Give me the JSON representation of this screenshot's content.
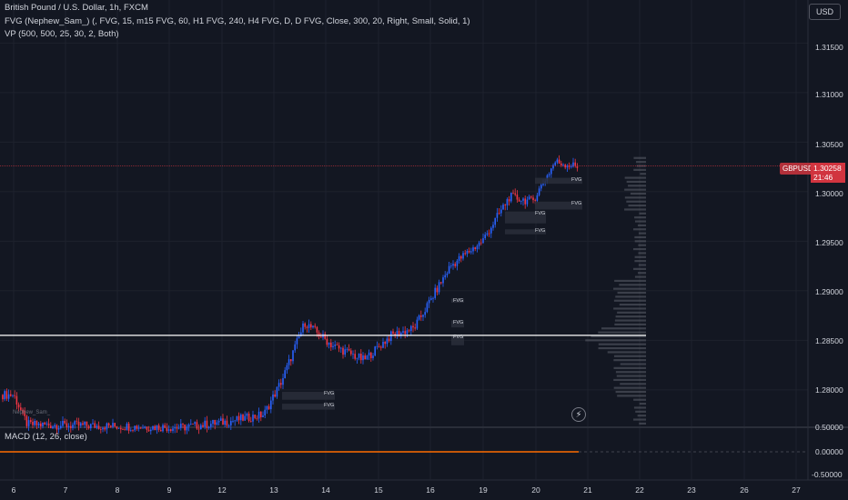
{
  "legend": {
    "symbol_line": "British Pound / U.S. Dollar, 1h, FXCM",
    "fvg_line": "FVG (Nephew_Sam_) (, FVG, 15, m15 FVG, 60, H1 FVG, 240, H4 FVG, D, D FVG, Close, 300, 20, Right, Small, Solid, 1)",
    "vp_line": "VP (500, 500, 25, 30, 2, Both)"
  },
  "currency_button": "USD",
  "price_axis": {
    "ticks": [
      "1.31500",
      "1.31000",
      "1.30500",
      "1.30000",
      "1.29500",
      "1.29000",
      "1.28500",
      "1.28000",
      "0.50000"
    ],
    "current_symbol": "GBPUSD",
    "current_price": "1.30258",
    "countdown": "21:46"
  },
  "macd": {
    "legend": "MACD (12, 26, close)",
    "ticks": [
      "0.00000",
      "-0.50000"
    ]
  },
  "time_axis": [
    "6",
    "7",
    "8",
    "9",
    "12",
    "13",
    "14",
    "15",
    "16",
    "19",
    "20",
    "21",
    "22",
    "23",
    "26",
    "27"
  ],
  "fvg_label_text": "FVG",
  "author_tag": "Nephew_Sam_",
  "alert_icon": "lightning-bolt-icon",
  "colors": {
    "background": "#131722",
    "up": "#2962ff",
    "down": "#f23645",
    "grid": "#1e222d",
    "current_price": "#d1343f",
    "horizontal_line": "#ffffff",
    "fvg_box": "#2a2e39",
    "macd_line": "#ff6d00"
  },
  "chart_data": {
    "type": "candlestick",
    "symbol": "GBPUSD",
    "timeframe": "1h",
    "ylim": [
      1.2765,
      1.3195
    ],
    "x_dates": [
      "6",
      "7",
      "8",
      "9",
      "12",
      "13",
      "14",
      "15",
      "16",
      "19",
      "20",
      "21",
      "22",
      "23",
      "26",
      "27"
    ],
    "horizontal_level": 1.2855,
    "current_price": 1.30258,
    "waypoints": [
      [
        "6",
        1.2795
      ],
      [
        "7",
        1.2765
      ],
      [
        "9",
        1.2762
      ],
      [
        "12",
        1.2768
      ],
      [
        "13",
        1.2775
      ],
      [
        "13",
        1.281
      ],
      [
        "14",
        1.2868
      ],
      [
        "14",
        1.2845
      ],
      [
        "15",
        1.283
      ],
      [
        "15",
        1.2855
      ],
      [
        "16",
        1.2862
      ],
      [
        "16",
        1.2925
      ],
      [
        "19",
        1.295
      ],
      [
        "19",
        1.2995
      ],
      [
        "20",
        1.299
      ],
      [
        "20",
        1.303
      ],
      [
        "21",
        1.3025
      ]
    ],
    "fvg_zones": [
      {
        "date": "20",
        "low": 1.3008,
        "high": 1.3014
      },
      {
        "date": "20",
        "low": 1.2982,
        "high": 1.299
      },
      {
        "date": "19",
        "low": 1.2968,
        "high": 1.298
      },
      {
        "date": "19",
        "low": 1.2957,
        "high": 1.2962
      },
      {
        "date": "16",
        "low": 1.2888,
        "high": 1.2892
      },
      {
        "date": "16",
        "low": 1.2863,
        "high": 1.287
      },
      {
        "date": "16",
        "low": 1.2845,
        "high": 1.2855
      },
      {
        "date": "13",
        "low": 1.279,
        "high": 1.2798
      },
      {
        "date": "13",
        "low": 1.278,
        "high": 1.2786
      }
    ],
    "macd": {
      "value": 0.0
    }
  }
}
